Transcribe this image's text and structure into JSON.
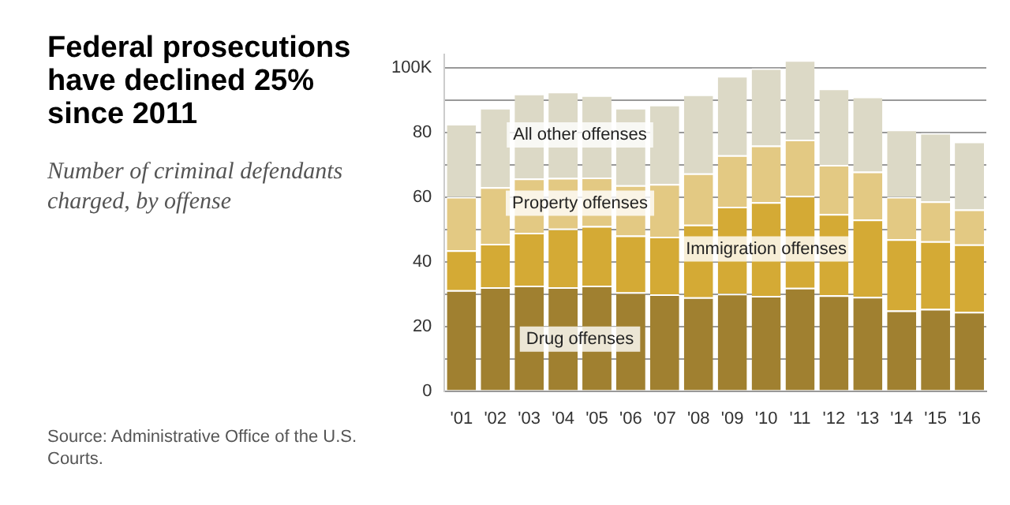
{
  "chart_data": {
    "type": "bar",
    "stacked": true,
    "title": "Federal prosecutions have declined 25% since 2011",
    "subtitle": "Number of criminal defendants charged, by offense",
    "categories": [
      "'01",
      "'02",
      "'03",
      "'04",
      "'05",
      "'06",
      "'07",
      "'08",
      "'09",
      "'10",
      "'11",
      "'12",
      "'13",
      "'14",
      "'15",
      "'16"
    ],
    "series": [
      {
        "name": "Drug offenses",
        "color": "#a08030",
        "values": [
          31.2,
          32.1,
          32.6,
          32.1,
          32.6,
          30.5,
          29.9,
          29.0,
          30.1,
          29.4,
          31.9,
          29.6,
          29.1,
          24.9,
          25.4,
          24.5
        ]
      },
      {
        "name": "Immigration offenses",
        "color": "#d4aa35",
        "values": [
          12.3,
          13.4,
          16.3,
          18.1,
          18.4,
          17.6,
          17.8,
          22.4,
          26.9,
          29.0,
          28.4,
          25.1,
          23.9,
          22.0,
          20.9,
          20.8
        ]
      },
      {
        "name": "Property offenses",
        "color": "#e3c983",
        "values": [
          16.5,
          17.5,
          16.8,
          15.7,
          15.0,
          15.5,
          16.3,
          15.9,
          15.9,
          17.5,
          17.4,
          15.2,
          14.8,
          13.1,
          12.3,
          10.8
        ]
      },
      {
        "name": "All other offenses",
        "color": "#dcd9c6",
        "values": [
          22.6,
          24.5,
          26.2,
          26.6,
          25.4,
          23.9,
          24.5,
          24.4,
          24.5,
          23.9,
          24.6,
          23.6,
          23.2,
          20.8,
          21.2,
          21.0
        ]
      }
    ],
    "ylim": [
      0,
      104
    ],
    "yticks": [
      0,
      {
        "value": 10,
        "label": null
      },
      20,
      {
        "value": 30,
        "label": null
      },
      40,
      {
        "value": 50,
        "label": null
      },
      60,
      {
        "value": 70,
        "label": null
      },
      80,
      {
        "value": 90,
        "label": null
      },
      {
        "value": 100,
        "label": "100K"
      }
    ],
    "grid": "y",
    "legend": false,
    "annotations": [
      "Source: Administrative Office of the U.S. Courts."
    ]
  }
}
